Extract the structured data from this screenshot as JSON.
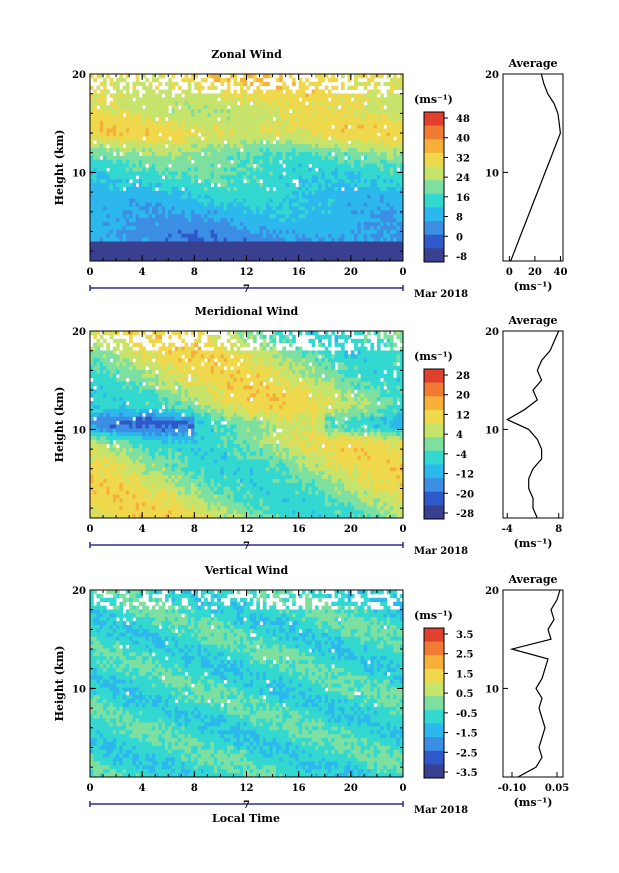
{
  "colors": {
    "zonal": [
      "#38408f",
      "#2f58c8",
      "#3b8ee4",
      "#2cb8ec",
      "#33d8d0",
      "#7ee0a0",
      "#c6e46c",
      "#f0d84c",
      "#f6b03a",
      "#f07c34",
      "#e0402e"
    ],
    "meridional": [
      "#38408f",
      "#2f58c8",
      "#3b8ee4",
      "#2cb8ec",
      "#33d8d0",
      "#7ee0a0",
      "#c6e46c",
      "#f0d84c",
      "#f6b03a",
      "#f07c34",
      "#e0402e"
    ],
    "vertical": [
      "#38408f",
      "#2f58c8",
      "#3b8ee4",
      "#2cb8ec",
      "#33d8d0",
      "#7ee0a0",
      "#c6e46c",
      "#f0d84c",
      "#f6b03a",
      "#f07c34",
      "#e0402e"
    ]
  },
  "common": {
    "ylabel": "Height (km)",
    "unit": "(ms⁻¹)",
    "date_label": "Mar 2018",
    "day_label": "7",
    "xlabel": "Local Time",
    "avg_title": "Average"
  },
  "chart_data": [
    {
      "type": "heatmap",
      "title": "Zonal Wind",
      "x_ticks": [
        "0",
        "4",
        "8",
        "12",
        "16",
        "20",
        "0"
      ],
      "y_ticks": [
        "20",
        "10"
      ],
      "xlim": [
        0,
        24
      ],
      "ylim": [
        1,
        20
      ],
      "colorbar_ticks": [
        "48",
        "40",
        "32",
        "24",
        "16",
        "8",
        "0",
        "-8"
      ],
      "profile": {
        "x_ticks": [
          "0",
          "20",
          "40"
        ],
        "xlim": [
          -5,
          42
        ],
        "heights": [
          1,
          2,
          3,
          4,
          5,
          6,
          7,
          8,
          9,
          10,
          11,
          12,
          13,
          14,
          15,
          16,
          17,
          18,
          19,
          20
        ],
        "values": [
          1,
          4,
          7,
          10,
          13,
          16,
          19,
          22,
          25,
          28,
          31,
          34,
          37,
          40,
          39,
          38,
          35,
          30,
          27,
          25
        ]
      }
    },
    {
      "type": "heatmap",
      "title": "Meridional Wind",
      "x_ticks": [
        "0",
        "4",
        "8",
        "12",
        "16",
        "20",
        "0"
      ],
      "y_ticks": [
        "20",
        "10"
      ],
      "xlim": [
        0,
        24
      ],
      "ylim": [
        1,
        20
      ],
      "colorbar_ticks": [
        "28",
        "20",
        "12",
        "4",
        "-4",
        "-12",
        "-20",
        "-28"
      ],
      "profile": {
        "x_ticks": [
          "-4",
          "8"
        ],
        "xlim": [
          -5,
          9
        ],
        "heights": [
          1,
          2,
          3,
          4,
          5,
          6,
          7,
          8,
          9,
          10,
          11,
          12,
          13,
          14,
          15,
          16,
          17,
          18,
          19,
          20
        ],
        "values": [
          3,
          2,
          2,
          1,
          1,
          2,
          4,
          4,
          3,
          1,
          -4,
          0,
          3,
          2,
          4,
          3,
          4,
          6,
          7,
          8
        ]
      }
    },
    {
      "type": "heatmap",
      "title": "Vertical Wind",
      "x_ticks": [
        "0",
        "4",
        "8",
        "12",
        "16",
        "20",
        "0"
      ],
      "y_ticks": [
        "20",
        "10"
      ],
      "xlim": [
        0,
        24
      ],
      "ylim": [
        1,
        20
      ],
      "colorbar_ticks": [
        "3.5",
        "2.5",
        "1.5",
        "0.5",
        "-0.5",
        "-1.5",
        "-2.5",
        "-3.5"
      ],
      "profile": {
        "x_ticks": [
          "-0.10",
          "0.05"
        ],
        "xlim": [
          -0.13,
          0.07
        ],
        "heights": [
          1,
          2,
          3,
          4,
          5,
          6,
          7,
          8,
          9,
          10,
          11,
          12,
          13,
          14,
          15,
          16,
          17,
          18,
          19,
          20
        ],
        "values": [
          -0.08,
          -0.02,
          0.0,
          -0.01,
          0.0,
          0.01,
          0.0,
          -0.01,
          0.0,
          -0.02,
          0.0,
          0.01,
          0.02,
          -0.1,
          0.03,
          0.02,
          0.04,
          0.03,
          0.05,
          0.06
        ]
      }
    }
  ]
}
